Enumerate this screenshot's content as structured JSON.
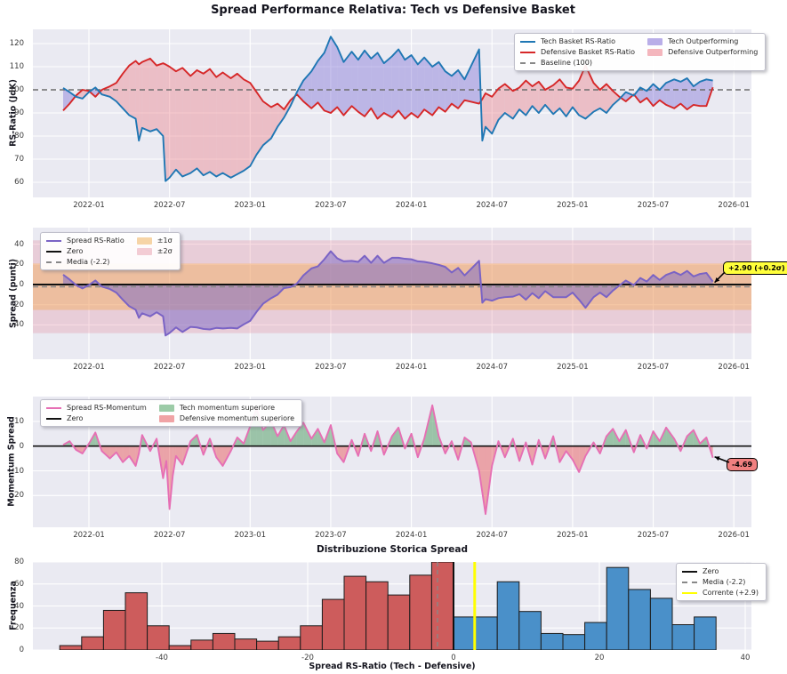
{
  "figure": {
    "title": "Spread Performance Relativa: Tech vs Defensive Basket",
    "background": "#ffffff",
    "axes_background": "#eaeaf2",
    "grid_color": "#ffffff"
  },
  "time_axis": {
    "tick_labels": [
      "2022-01",
      "2022-07",
      "2023-01",
      "2023-07",
      "2024-01",
      "2024-07",
      "2025-01",
      "2025-07",
      "2026-01"
    ],
    "tick_years": [
      2022.0,
      2022.5,
      2023.0,
      2023.5,
      2024.0,
      2024.5,
      2025.0,
      2025.5,
      2026.0
    ],
    "xlim_years": [
      2021.65,
      2026.11
    ]
  },
  "chart_data": [
    {
      "type": "line",
      "ylabel": "RS-Ratio (JdK)",
      "yticks": [
        60,
        70,
        80,
        90,
        100,
        110,
        120
      ],
      "ylim": [
        53.5,
        126
      ],
      "baseline": 100,
      "legend_pos": "upper right",
      "colors": {
        "tech": "#1f77b4",
        "defensive": "#d62728",
        "baseline": "#6d6d6d",
        "tech_fill": "rgba(134,119,216,0.45)",
        "defensive_fill": "rgba(235,128,138,0.42)"
      },
      "legend": {
        "columns": [
          [
            {
              "label": "Tech Basket RS-Ratio",
              "swatch": "line",
              "color": "#1f77b4"
            },
            {
              "label": "Defensive Basket RS-Ratio",
              "swatch": "line",
              "color": "#d62728"
            },
            {
              "label": "Baseline (100)",
              "swatch": "dash",
              "color": "#888888"
            }
          ],
          [
            {
              "label": "Tech Outperforming",
              "swatch": "patch",
              "color": "#b9aee8"
            },
            {
              "label": "Defensive Outperforming",
              "swatch": "patch",
              "color": "#f4b6bd"
            }
          ]
        ]
      },
      "x": [
        2021.84,
        2021.88,
        2021.92,
        2021.96,
        2022.0,
        2022.04,
        2022.08,
        2022.13,
        2022.17,
        2022.21,
        2022.25,
        2022.29,
        2022.31,
        2022.33,
        2022.38,
        2022.42,
        2022.46,
        2022.475,
        2022.5,
        2022.54,
        2022.58,
        2022.63,
        2022.67,
        2022.71,
        2022.75,
        2022.79,
        2022.83,
        2022.88,
        2022.92,
        2022.96,
        2023.0,
        2023.04,
        2023.08,
        2023.13,
        2023.17,
        2023.21,
        2023.25,
        2023.29,
        2023.33,
        2023.38,
        2023.42,
        2023.46,
        2023.5,
        2023.54,
        2023.58,
        2023.63,
        2023.67,
        2023.71,
        2023.75,
        2023.79,
        2023.83,
        2023.88,
        2023.92,
        2023.96,
        2024.0,
        2024.04,
        2024.08,
        2024.13,
        2024.17,
        2024.21,
        2024.25,
        2024.29,
        2024.33,
        2024.42,
        2024.44,
        2024.46,
        2024.5,
        2024.54,
        2024.58,
        2024.63,
        2024.67,
        2024.71,
        2024.75,
        2024.79,
        2024.83,
        2024.88,
        2024.92,
        2024.96,
        2025.0,
        2025.04,
        2025.08,
        2025.13,
        2025.17,
        2025.21,
        2025.25,
        2025.29,
        2025.33,
        2025.38,
        2025.42,
        2025.46,
        2025.5,
        2025.54,
        2025.58,
        2025.63,
        2025.67,
        2025.71,
        2025.75,
        2025.79,
        2025.83,
        2025.87
      ],
      "series": [
        {
          "name": "Tech Basket RS-Ratio",
          "values": [
            100.8,
            99,
            97,
            96.2,
            99,
            101,
            98,
            97,
            95,
            92,
            89,
            87.5,
            78,
            83.5,
            82,
            83,
            80,
            60.5,
            62,
            65.5,
            62.5,
            64,
            66,
            63,
            64.5,
            62.5,
            64,
            62,
            63.5,
            65,
            67,
            72,
            76,
            79,
            84,
            88,
            93,
            99,
            104,
            108,
            112.5,
            116,
            123,
            118.5,
            112,
            116.5,
            113,
            117,
            113.5,
            116,
            111.5,
            114.5,
            117.5,
            113,
            115,
            111,
            114,
            110,
            112,
            108,
            106,
            108.5,
            104.5,
            117.5,
            78,
            84,
            81,
            87,
            90,
            87.5,
            91.5,
            89,
            93,
            90,
            93.5,
            89.5,
            92,
            88.5,
            92.5,
            89,
            87.5,
            90.5,
            92,
            90,
            93.5,
            96,
            99,
            97.5,
            101,
            99.5,
            102.5,
            100,
            103,
            104.5,
            103.5,
            105,
            101.5,
            103.5,
            104.5,
            104
          ]
        },
        {
          "name": "Defensive Basket RS-Ratio",
          "values": [
            91,
            94,
            97.5,
            100,
            99.5,
            97,
            100,
            101.5,
            103,
            107,
            110.5,
            112.5,
            111,
            112,
            113.5,
            110.5,
            111.5,
            111,
            110,
            108,
            109.5,
            106,
            108.5,
            107,
            109,
            105.5,
            107.5,
            105,
            107,
            104.5,
            103,
            99,
            95,
            92.5,
            94,
            91.5,
            95.5,
            98,
            95,
            92,
            94.5,
            91,
            90,
            92.5,
            89,
            93,
            90.5,
            88.5,
            92,
            87.5,
            90,
            88,
            91,
            87.5,
            90,
            88,
            91.5,
            89,
            92.5,
            90.5,
            94,
            92,
            95.5,
            94,
            96,
            98.5,
            97,
            100.5,
            102.5,
            99.5,
            101,
            104,
            101.5,
            103.5,
            100,
            102,
            104.5,
            101,
            100.5,
            104,
            110.5,
            103,
            100,
            102.5,
            99.5,
            97,
            95,
            98,
            94.5,
            96.5,
            93,
            95.5,
            93.5,
            92,
            94,
            91.5,
            93.5,
            93,
            93,
            101.1
          ]
        }
      ]
    },
    {
      "type": "area",
      "ylabel": "Spread (punti)",
      "yticks": [
        40,
        20,
        0,
        -20,
        -40
      ],
      "ylim": [
        -74,
        56
      ],
      "mean": -2.2,
      "sigma1_band": [
        -25.2,
        20.8
      ],
      "sigma2_band": [
        -48.2,
        43.8
      ],
      "current": 2.9,
      "annotation": {
        "text": "+2.90 (+0.2σ)",
        "box_color": "#ffff3b"
      },
      "colors": {
        "line": "#7a63c5",
        "fill": "rgba(125,105,198,0.52)",
        "zero": "#111111",
        "mean": "#888888",
        "sigma1": "rgba(243,174,92,0.45)",
        "sigma2": "rgba(228,130,150,0.28)"
      },
      "legend": {
        "columns": [
          [
            {
              "label": "Spread RS-Ratio",
              "swatch": "line",
              "color": "#7a63c5"
            },
            {
              "label": "Zero",
              "swatch": "line",
              "color": "#111111"
            },
            {
              "label": "Media (-2.2)",
              "swatch": "dash",
              "color": "#888888"
            }
          ],
          [
            {
              "label": "±1σ",
              "swatch": "patch",
              "color": "#f6d4a6"
            },
            {
              "label": "±2σ",
              "swatch": "patch",
              "color": "#f3ccd4"
            }
          ]
        ]
      },
      "values": [
        9.8,
        5,
        -0.5,
        -3.8,
        -0.5,
        4,
        -2,
        -4.5,
        -8,
        -15,
        -21.5,
        -25,
        -33,
        -28.5,
        -31.5,
        -27.5,
        -31.5,
        -50.5,
        -48,
        -42.5,
        -47,
        -42,
        -42.5,
        -44,
        -44.5,
        -43,
        -43.5,
        -43,
        -43.5,
        -39.5,
        -36,
        -27,
        -19,
        -13.5,
        -10,
        -3.5,
        -2.5,
        1,
        9,
        16,
        18,
        25,
        33,
        26,
        23,
        23.5,
        22.5,
        28.5,
        21.5,
        28.5,
        21.5,
        26.5,
        26.5,
        25.5,
        25,
        23,
        22.5,
        21,
        19.5,
        17.5,
        12,
        16.5,
        9,
        23.5,
        -18,
        -14.5,
        -16,
        -13.5,
        -12.5,
        -12,
        -9.5,
        -15,
        -8.5,
        -13.5,
        -6.5,
        -12.5,
        -12.5,
        -12.5,
        -8,
        -15,
        -23,
        -12.5,
        -8,
        -12.5,
        -6,
        -1,
        4,
        -0.5,
        6.5,
        3,
        9.5,
        4.5,
        9.5,
        12.5,
        9.5,
        13.5,
        8,
        10.5,
        11.5,
        2.9
      ]
    },
    {
      "type": "area",
      "ylabel": "Momentum Spread",
      "yticks": [
        10,
        0,
        -10,
        -20
      ],
      "ylim": [
        -32.8,
        20
      ],
      "current": -4.69,
      "annotation": {
        "text": "-4.69",
        "box_color": "#f08080"
      },
      "colors": {
        "line": "#e66fb4",
        "zero": "#111111",
        "positive_fill": "rgba(102,168,118,0.6)",
        "negative_fill": "rgba(233,104,108,0.55)"
      },
      "legend": {
        "columns": [
          [
            {
              "label": "Spread RS-Momentum",
              "swatch": "line",
              "color": "#e66fb4"
            },
            {
              "label": "Zero",
              "swatch": "line",
              "color": "#111111"
            }
          ],
          [
            {
              "label": "Tech momentum superiore",
              "swatch": "patch",
              "color": "#9ccba7"
            },
            {
              "label": "Defensive momentum superiore",
              "swatch": "patch",
              "color": "#f0a3a5"
            }
          ]
        ]
      },
      "x": [
        2021.84,
        2021.88,
        2021.92,
        2021.96,
        2022.0,
        2022.04,
        2022.08,
        2022.13,
        2022.17,
        2022.21,
        2022.25,
        2022.29,
        2022.31,
        2022.33,
        2022.38,
        2022.42,
        2022.46,
        2022.48,
        2022.5,
        2022.52,
        2022.54,
        2022.58,
        2022.63,
        2022.67,
        2022.71,
        2022.75,
        2022.79,
        2022.83,
        2022.88,
        2022.92,
        2022.96,
        2023.0,
        2023.04,
        2023.08,
        2023.13,
        2023.17,
        2023.21,
        2023.25,
        2023.29,
        2023.33,
        2023.38,
        2023.42,
        2023.46,
        2023.5,
        2023.54,
        2023.58,
        2023.63,
        2023.67,
        2023.71,
        2023.75,
        2023.79,
        2023.83,
        2023.88,
        2023.92,
        2023.96,
        2024.0,
        2024.04,
        2024.08,
        2024.13,
        2024.17,
        2024.21,
        2024.25,
        2024.29,
        2024.33,
        2024.37,
        2024.42,
        2024.46,
        2024.5,
        2024.54,
        2024.58,
        2024.63,
        2024.67,
        2024.71,
        2024.75,
        2024.79,
        2024.83,
        2024.88,
        2024.92,
        2024.96,
        2025.0,
        2025.04,
        2025.08,
        2025.13,
        2025.17,
        2025.21,
        2025.25,
        2025.29,
        2025.33,
        2025.38,
        2025.42,
        2025.46,
        2025.5,
        2025.54,
        2025.58,
        2025.63,
        2025.67,
        2025.71,
        2025.75,
        2025.79,
        2025.83,
        2025.87
      ],
      "values": [
        0.5,
        2,
        -1.5,
        -3,
        1,
        5.5,
        -2,
        -5,
        -2.5,
        -6.5,
        -4,
        -8,
        -3,
        4.5,
        -2,
        3,
        -13,
        -6,
        -25.5,
        -12,
        -4,
        -7.5,
        2,
        4.5,
        -3.5,
        3,
        -4.5,
        -8,
        -2,
        3.5,
        1,
        8,
        15,
        6.5,
        10,
        4,
        8.5,
        2,
        6,
        9.5,
        3,
        7,
        1.5,
        8.5,
        -3,
        -6.5,
        2.5,
        -4,
        5,
        -2,
        6,
        -3.5,
        4,
        7.5,
        -1,
        5,
        -4.5,
        3,
        16.5,
        4,
        -3,
        2,
        -5.5,
        3.5,
        1.5,
        -10,
        -27.5,
        -8,
        2,
        -4.5,
        3,
        -6,
        1.5,
        -7.5,
        2.5,
        -5,
        4,
        -6.5,
        -2,
        -5.5,
        -10.5,
        -4,
        1.5,
        -3,
        4,
        7,
        2,
        6.5,
        -2.5,
        4.5,
        -1,
        6,
        2,
        7.5,
        3,
        -2,
        4,
        6.5,
        1,
        3.5,
        -4.69
      ]
    },
    {
      "type": "bar",
      "title": "Distribuzione Storica Spread",
      "xlabel": "Spread RS-Ratio (Tech - Defensive)",
      "ylabel": "Frequenza",
      "yticks": [
        0,
        20,
        40,
        60,
        80
      ],
      "xticks": [
        -40,
        -20,
        0,
        20,
        40
      ],
      "xlim": [
        -57.7,
        40.9
      ],
      "ylim": [
        0,
        80
      ],
      "bin_start": -54,
      "bin_width": 3,
      "frequencies": [
        4,
        12,
        36,
        52,
        22,
        4,
        9,
        15,
        10,
        8,
        12,
        22,
        46,
        67,
        62,
        50,
        68,
        80,
        30,
        30,
        62,
        35,
        15,
        14,
        25,
        75,
        55,
        47,
        23,
        30
      ],
      "split_at": 0,
      "zero_line": 0,
      "media_line": -2.2,
      "corrente_line": 2.9,
      "colors": {
        "negative_bars": "#cd5c5c",
        "positive_bars": "#4a90c9",
        "bar_edge": "#1c1c1c",
        "zero": "#111111",
        "media": "#888888",
        "corrente": "#ffff00"
      },
      "legend": {
        "columns": [
          [
            {
              "label": "Zero",
              "swatch": "line",
              "color": "#111111"
            },
            {
              "label": "Media (-2.2)",
              "swatch": "dash",
              "color": "#888888"
            },
            {
              "label": "Corrente (+2.9)",
              "swatch": "line",
              "color": "#ffff00"
            }
          ]
        ]
      }
    }
  ]
}
